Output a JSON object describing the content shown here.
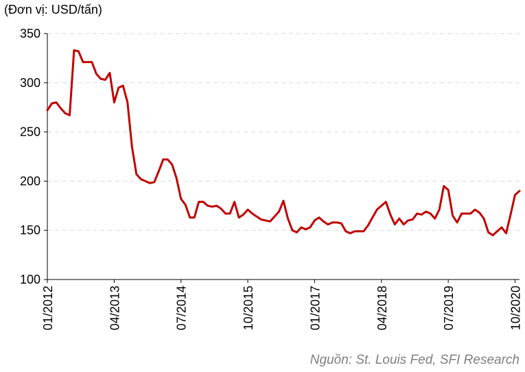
{
  "chart_data": {
    "type": "line",
    "unit_label": "(Đơn vị: USD/tấn)",
    "source": "Nguồn: St. Louis Fed, SFI Research",
    "ylim": [
      100,
      350
    ],
    "yticks": [
      100,
      150,
      200,
      250,
      300,
      350
    ],
    "xticks": [
      "01/2012",
      "04/2013",
      "07/2014",
      "10/2015",
      "01/2017",
      "04/2018",
      "07/2019",
      "10/2020"
    ],
    "grid": true,
    "color": "#c00000",
    "series": [
      {
        "values": [
          272,
          279,
          280,
          274,
          269,
          267,
          333,
          332,
          321,
          321,
          321,
          309,
          304,
          303,
          310,
          280,
          295,
          297,
          280,
          235,
          207,
          202,
          200,
          198,
          199,
          210,
          222,
          222,
          217,
          203,
          182,
          176,
          163,
          163,
          179,
          179,
          175,
          174,
          175,
          172,
          167,
          167,
          179,
          163,
          166,
          171,
          167,
          164,
          161,
          160,
          159,
          164,
          169,
          180,
          162,
          150,
          148,
          153,
          151,
          153,
          160,
          163,
          159,
          156,
          158,
          158,
          157,
          149,
          147,
          149,
          149,
          149,
          155,
          163,
          171,
          175,
          179,
          166,
          156,
          162,
          156,
          160,
          161,
          167,
          166,
          169,
          167,
          162,
          171,
          195,
          191,
          165,
          158,
          167,
          167,
          167,
          171,
          168,
          162,
          148,
          145,
          149,
          153,
          147,
          166,
          186,
          190
        ]
      }
    ]
  }
}
